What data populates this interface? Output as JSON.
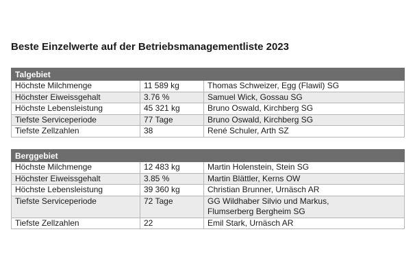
{
  "title": "Beste Einzelwerte auf der Betriebsmanagementliste 2023",
  "sections": [
    {
      "heading": "Talgebiet",
      "rows": [
        {
          "label": "Höchste Milchmenge",
          "value": "11 589 kg",
          "holder": [
            "Thomas Schweizer, Egg (Flawil) SG"
          ]
        },
        {
          "label": "Höchster Eiweissgehalt",
          "value": "3.76 %",
          "holder": [
            "Samuel Wick, Gossau SG"
          ]
        },
        {
          "label": "Höchste Lebensleistung",
          "value": "45 321 kg",
          "holder": [
            "Bruno Oswald, Kirchberg SG"
          ]
        },
        {
          "label": "Tiefste Serviceperiode",
          "value": "77 Tage",
          "holder": [
            "Bruno Oswald, Kirchberg SG"
          ]
        },
        {
          "label": "Tiefste Zellzahlen",
          "value": "38",
          "holder": [
            "René Schuler, Arth SZ"
          ]
        }
      ]
    },
    {
      "heading": "Berggebiet",
      "rows": [
        {
          "label": "Höchste Milchmenge",
          "value": "12 483 kg",
          "holder": [
            "Martin Holenstein, Stein SG"
          ]
        },
        {
          "label": "Höchster Eiweissgehalt",
          "value": "3.85 %",
          "holder": [
            "Martin Blättler, Kerns OW"
          ]
        },
        {
          "label": "Höchste Lebensleistung",
          "value": "39 360 kg",
          "holder": [
            "Christian Brunner, Urnäsch AR"
          ]
        },
        {
          "label": "Tiefste Serviceperiode",
          "value": "72 Tage",
          "holder": [
            "GG Wildhaber Silvio und Markus,",
            "Flumserberg Bergheim SG"
          ]
        },
        {
          "label": "Tiefste Zellzahlen",
          "value": "22",
          "holder": [
            "Emil Stark, Urnäsch AR"
          ]
        }
      ]
    }
  ]
}
